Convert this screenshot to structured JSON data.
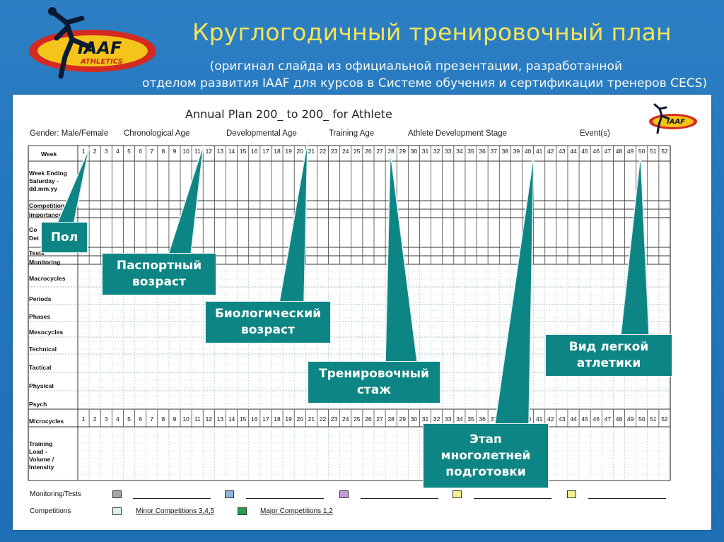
{
  "slide": {
    "title": "Круглогодичный тренировочный план",
    "subtitle_line1": "(оригинал слайда из официальной презентации, разработанной",
    "subtitle_line2": "отделом развития IAAF для курсов в Системе обучения и сертификации тренеров CECS)",
    "logo_text_main": "IAAF",
    "logo_text_sub": "ATHLETICS"
  },
  "document": {
    "heading": "Annual Plan 200_   to 200_   for Athlete",
    "meta": {
      "gender": "Gender: Male/Female",
      "chrono_age": "Chronological Age",
      "dev_age": "Developmental Age",
      "training_age": "Training Age",
      "stage": "Athlete Development Stage",
      "events": "Event(s)"
    },
    "rows": [
      "Week",
      "Week Ending Saturday - dd.mm.yy",
      "Competitions",
      "Importance",
      "Competitions Details",
      "Tests",
      "Monitoring",
      "Macrocycles",
      "Periods",
      "Phases",
      "Mesocycles",
      "Technical",
      "Tactical",
      "Physical",
      "Psych",
      "Microcycles",
      "Training Load - Volume / Intensity"
    ],
    "row_labels": {
      "week": "Week",
      "week_ending": "Week Ending\nSaturday -\ndd.mm.yy",
      "competitions": "Competitions",
      "importance": "Importance",
      "comp_a": "Co",
      "comp_b": "Det",
      "tests": "Tests",
      "monitoring": "Monitoring",
      "macrocycles": "Macrocycles",
      "periods": "Periods",
      "phases": "Phases",
      "mesocycles": "Mesocycles",
      "technical": "Technical",
      "tactical": "Tactical",
      "physical": "Physical",
      "psych": "Psych",
      "microcycles": "Microcycles",
      "training_load": "Training\nLoad -\nVolume /\nIntensity"
    },
    "weeks_count": 52,
    "legend": {
      "monitoring_tests": "Monitoring/Tests",
      "competitions": "Competitions",
      "minor": "Minor Competitions 3,4,5",
      "major": "Major Competitions 1,2",
      "colors": [
        "#a6a6a6",
        "#8fb4e3",
        "#c39ad8",
        "#f4ef8c"
      ],
      "minor_color": "#d8f0ee",
      "major_color": "#22a04a"
    }
  },
  "callouts": {
    "gender": "Пол",
    "chrono_age": "Паспортный возраст",
    "dev_age": "Биологический возраст",
    "training_age": "Тренировочный стаж",
    "stage": "Этап многолетней подготовки",
    "event": "Вид легкой атлетики"
  },
  "colors": {
    "background": "#2477bd",
    "title": "#f3e45a",
    "callout": "#0e8585"
  }
}
